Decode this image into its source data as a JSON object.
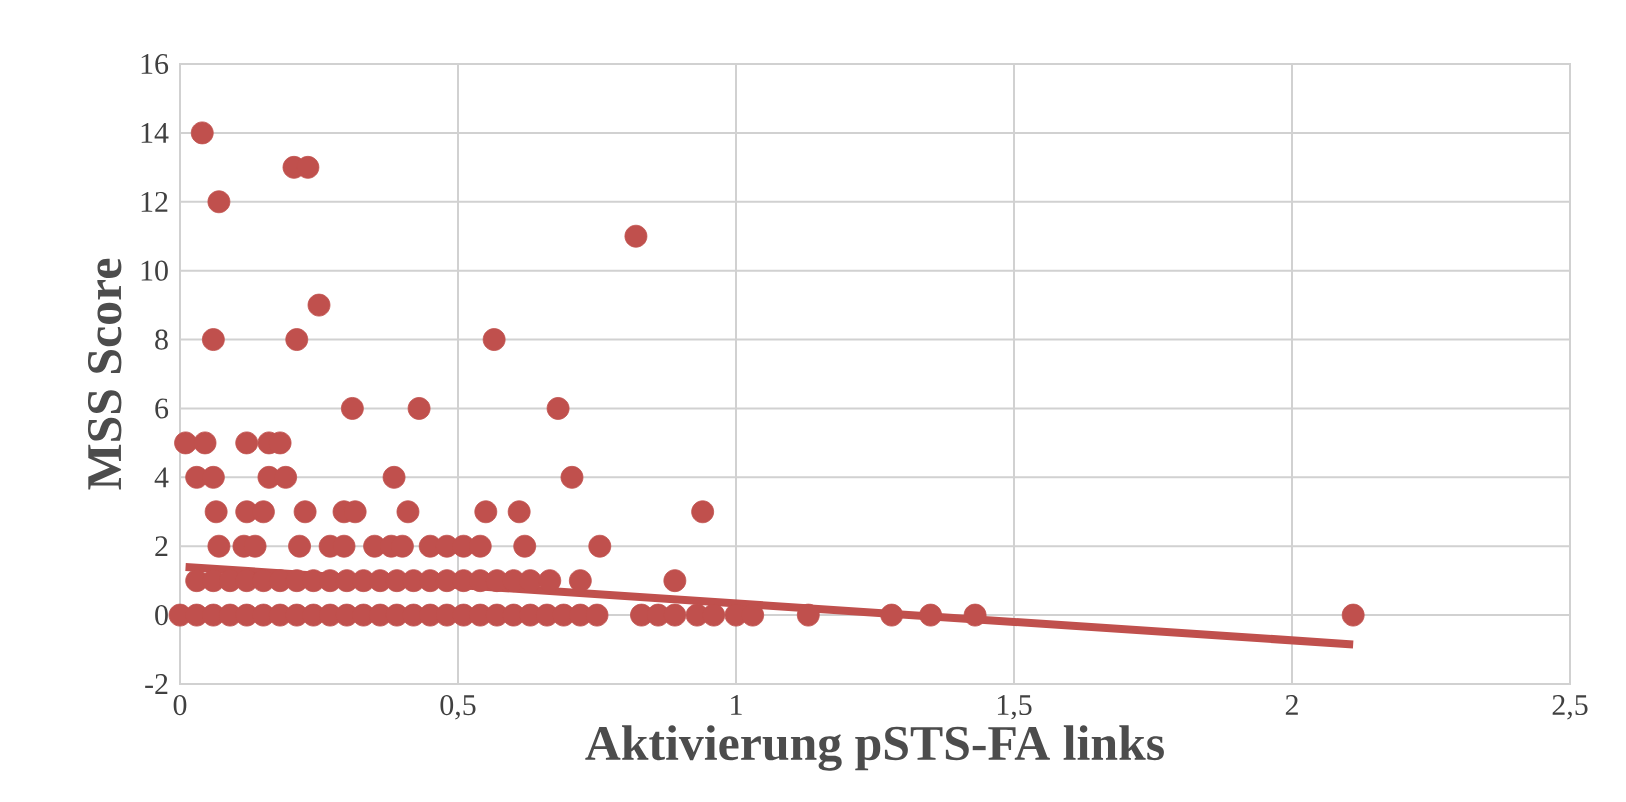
{
  "chart_data": {
    "type": "scatter",
    "xlabel": "Aktivierung pSTS-FA links",
    "ylabel": "MSS Score",
    "xlim": [
      0,
      2.5
    ],
    "ylim": [
      -2,
      16
    ],
    "xticks": [
      0,
      {
        "value": 0.5,
        "label": "0,5"
      },
      1,
      {
        "value": 1.5,
        "label": "1,5"
      },
      2,
      {
        "value": 2.5,
        "label": "2,5"
      }
    ],
    "yticks": [
      -2,
      0,
      2,
      4,
      6,
      8,
      10,
      12,
      14,
      16
    ],
    "grid": true,
    "series": [
      {
        "marker": "circle",
        "color": "#c0504d",
        "x": [
          0.04,
          0.205,
          0.23,
          0.07,
          0.82,
          0.25,
          0.06,
          0.21,
          0.565,
          0.31,
          0.43,
          0.68,
          0.01,
          0.045,
          0.12,
          0.16,
          0.18,
          0.03,
          0.06,
          0.16,
          0.19,
          0.385,
          0.705,
          0.065,
          0.12,
          0.15,
          0.225,
          0.295,
          0.315,
          0.41,
          0.55,
          0.61,
          0.94,
          0.07,
          0.115,
          0.135,
          0.215,
          0.27,
          0.295,
          0.35,
          0.38,
          0.4,
          0.45,
          0.48,
          0.51,
          0.54,
          0.62,
          0.755,
          0.03,
          0.06,
          0.09,
          0.12,
          0.15,
          0.18,
          0.21,
          0.24,
          0.27,
          0.3,
          0.33,
          0.36,
          0.39,
          0.42,
          0.45,
          0.48,
          0.51,
          0.54,
          0.57,
          0.6,
          0.63,
          0.665,
          0.72,
          0.89,
          0.0,
          0.03,
          0.06,
          0.09,
          0.12,
          0.15,
          0.18,
          0.21,
          0.24,
          0.27,
          0.3,
          0.33,
          0.36,
          0.39,
          0.42,
          0.45,
          0.48,
          0.51,
          0.54,
          0.57,
          0.6,
          0.63,
          0.66,
          0.69,
          0.72,
          0.75,
          0.83,
          0.86,
          0.89,
          0.93,
          0.96,
          1.0,
          1.03,
          1.13,
          1.28,
          1.35,
          1.43,
          2.11
        ],
        "values": [
          14,
          13,
          13,
          12,
          11,
          9,
          8,
          8,
          8,
          6,
          6,
          6,
          5,
          5,
          5,
          5,
          5,
          4,
          4,
          4,
          4,
          4,
          4,
          3,
          3,
          3,
          3,
          3,
          3,
          3,
          3,
          3,
          3,
          2,
          2,
          2,
          2,
          2,
          2,
          2,
          2,
          2,
          2,
          2,
          2,
          2,
          2,
          2,
          1,
          1,
          1,
          1,
          1,
          1,
          1,
          1,
          1,
          1,
          1,
          1,
          1,
          1,
          1,
          1,
          1,
          1,
          1,
          1,
          1,
          1,
          1,
          1,
          0,
          0,
          0,
          0,
          0,
          0,
          0,
          0,
          0,
          0,
          0,
          0,
          0,
          0,
          0,
          0,
          0,
          0,
          0,
          0,
          0,
          0,
          0,
          0,
          0,
          0,
          0,
          0,
          0,
          0,
          0,
          0,
          0,
          0,
          0,
          0,
          0,
          0
        ]
      },
      {
        "type": "line",
        "marker": "none",
        "color": "#c0504d",
        "x": [
          0.01,
          2.11
        ],
        "values": [
          1.4,
          -0.85
        ]
      }
    ]
  }
}
